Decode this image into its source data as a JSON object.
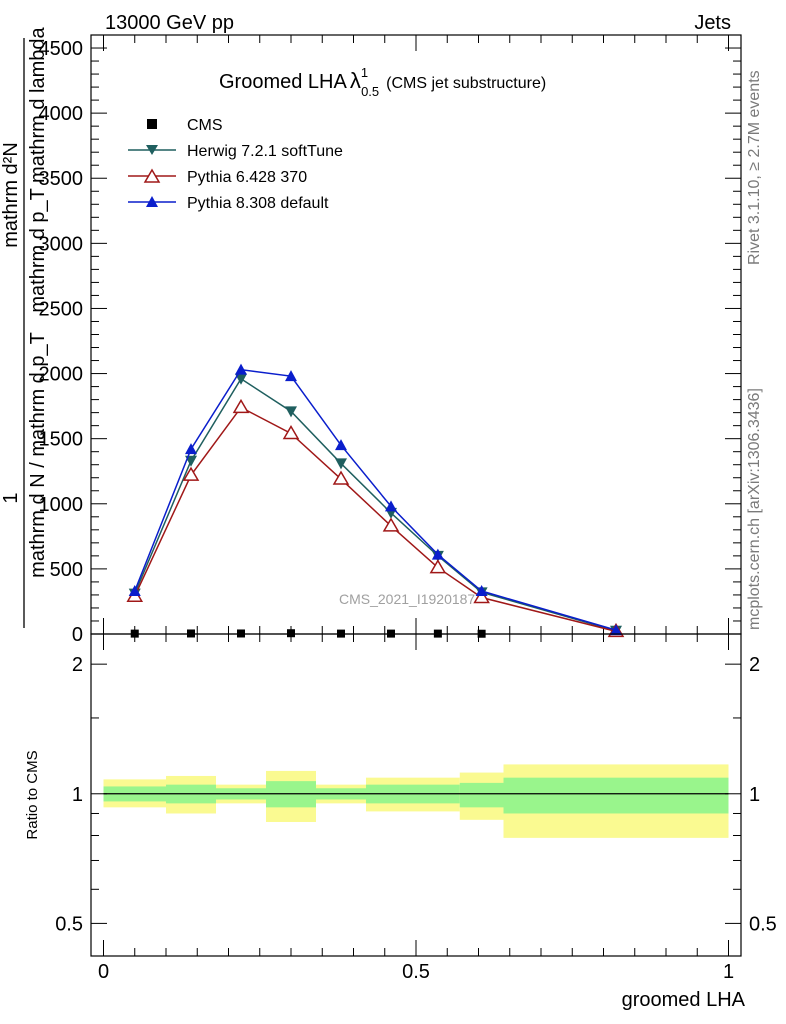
{
  "header": {
    "left": "13000 GeV pp",
    "right": "Jets"
  },
  "watermark": "CMS_2021_I1920187",
  "side_labels": {
    "rivet": "Rivet 3.1.10, ≥ 2.7M events",
    "mcplots": "mcplots.cern.ch [arXiv:1306.3436]"
  },
  "chart_data": [
    {
      "type": "line",
      "title_main": "Groomed LHA",
      "title_lambda": "λ",
      "title_sup": "1",
      "title_sub": "0.5",
      "title_suffix": "(CMS jet substructure)",
      "ylabel_top_line": "mathrm d²N",
      "ylabel_top_den": "mathrm d p_T mathrm d lambda",
      "ylabel_one": "1",
      "ylabel_bottom": "mathrm d N / mathrm d p_T",
      "ylim": [
        0,
        4600
      ],
      "yticks": [
        {
          "value": 0,
          "label": "0"
        },
        {
          "value": 500,
          "label": "500"
        },
        {
          "value": 1000,
          "label": "1000"
        },
        {
          "value": 1500,
          "label": "1500"
        },
        {
          "value": 2000,
          "label": "2000"
        },
        {
          "value": 2500,
          "label": "2500"
        },
        {
          "value": 3000,
          "label": "3000"
        },
        {
          "value": 3500,
          "label": "3500"
        },
        {
          "value": 4000,
          "label": "4000"
        },
        {
          "value": 4500,
          "label": "4500"
        }
      ],
      "xlim": [
        -0.02,
        1.02
      ],
      "series": [
        {
          "name": "CMS",
          "color": "#000000",
          "marker": "square",
          "x": [
            0.05,
            0.14,
            0.22,
            0.3,
            0.38,
            0.46,
            0.535,
            0.605
          ],
          "y": [
            3,
            4,
            4,
            6,
            3,
            3,
            3,
            2
          ]
        },
        {
          "name": "Herwig 7.2.1 softTune",
          "color": "#1f5f5f",
          "marker": "triangle-down",
          "x": [
            0.05,
            0.14,
            0.22,
            0.3,
            0.38,
            0.46,
            0.535,
            0.605,
            0.82
          ],
          "y": [
            310,
            1330,
            1960,
            1710,
            1310,
            930,
            600,
            320,
            25
          ]
        },
        {
          "name": "Pythia 6.428 370",
          "color": "#a01818",
          "marker": "triangle-up-open",
          "x": [
            0.05,
            0.14,
            0.22,
            0.3,
            0.38,
            0.46,
            0.535,
            0.605,
            0.82
          ],
          "y": [
            290,
            1220,
            1740,
            1540,
            1190,
            830,
            510,
            280,
            20
          ]
        },
        {
          "name": "Pythia 8.308 default",
          "color": "#0a1ecc",
          "marker": "triangle-up",
          "x": [
            0.05,
            0.14,
            0.22,
            0.3,
            0.38,
            0.46,
            0.535,
            0.605,
            0.82
          ],
          "y": [
            330,
            1420,
            2030,
            1980,
            1450,
            980,
            610,
            330,
            30
          ]
        }
      ]
    },
    {
      "type": "area",
      "ylabel": "Ratio to CMS",
      "ylim": [
        0.42,
        2.35
      ],
      "yscale": "log",
      "yticks": [
        {
          "value": 0.5,
          "label": "0.5"
        },
        {
          "value": 1,
          "label": "1"
        },
        {
          "value": 2,
          "label": "2"
        }
      ],
      "xlabel": "groomed LHA",
      "xlim": [
        -0.02,
        1.02
      ],
      "xticks": [
        {
          "value": 0,
          "label": "0"
        },
        {
          "value": 0.5,
          "label": "0.5"
        },
        {
          "value": 1,
          "label": "1"
        }
      ],
      "bands": [
        {
          "x0": 0.0,
          "x1": 0.1,
          "stat_lo": 0.96,
          "stat_hi": 1.04,
          "tot_lo": 0.93,
          "tot_hi": 1.08
        },
        {
          "x0": 0.1,
          "x1": 0.18,
          "stat_lo": 0.95,
          "stat_hi": 1.05,
          "tot_lo": 0.9,
          "tot_hi": 1.1
        },
        {
          "x0": 0.18,
          "x1": 0.26,
          "stat_lo": 0.97,
          "stat_hi": 1.03,
          "tot_lo": 0.95,
          "tot_hi": 1.05
        },
        {
          "x0": 0.26,
          "x1": 0.34,
          "stat_lo": 0.93,
          "stat_hi": 1.07,
          "tot_lo": 0.86,
          "tot_hi": 1.13
        },
        {
          "x0": 0.34,
          "x1": 0.42,
          "stat_lo": 0.97,
          "stat_hi": 1.03,
          "tot_lo": 0.95,
          "tot_hi": 1.05
        },
        {
          "x0": 0.42,
          "x1": 0.5,
          "stat_lo": 0.95,
          "stat_hi": 1.05,
          "tot_lo": 0.91,
          "tot_hi": 1.09
        },
        {
          "x0": 0.5,
          "x1": 0.57,
          "stat_lo": 0.95,
          "stat_hi": 1.05,
          "tot_lo": 0.91,
          "tot_hi": 1.09
        },
        {
          "x0": 0.57,
          "x1": 0.64,
          "stat_lo": 0.93,
          "stat_hi": 1.06,
          "tot_lo": 0.87,
          "tot_hi": 1.12
        },
        {
          "x0": 0.64,
          "x1": 1.0,
          "stat_lo": 0.9,
          "stat_hi": 1.09,
          "tot_lo": 0.79,
          "tot_hi": 1.17
        }
      ],
      "colors": {
        "stat": "#99f58c",
        "total": "#fafa91"
      }
    }
  ]
}
